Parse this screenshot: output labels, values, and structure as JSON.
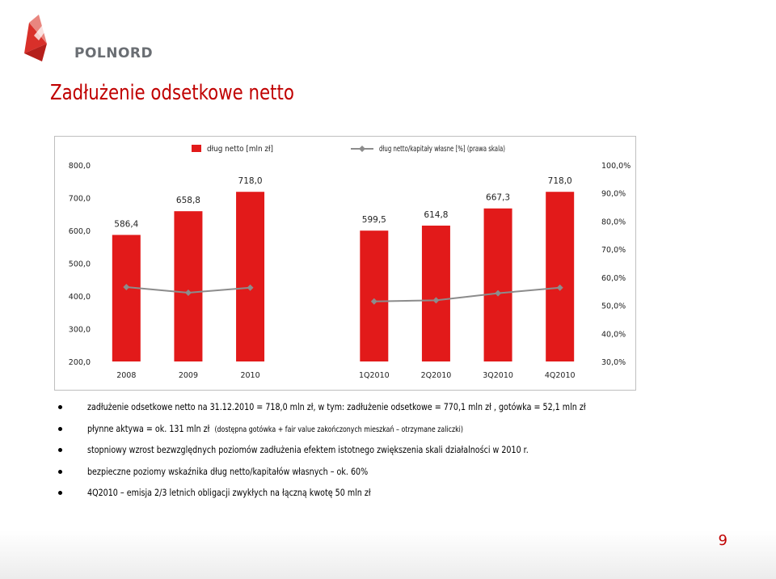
{
  "header": {
    "logo_text": "POLNORD",
    "title": "Zadłużenie odsetkowe netto"
  },
  "colors": {
    "bar": "#e21a1a",
    "line": "#8c8c8c",
    "title": "#c00000",
    "logo_text": "#6a6e73"
  },
  "chart_data": {
    "type": "bar",
    "categories": [
      "2008",
      "2009",
      "2010",
      "",
      "1Q2010",
      "2Q2010",
      "3Q2010",
      "4Q2010"
    ],
    "series": [
      {
        "name": "dług netto [mln zł]",
        "type": "bar",
        "axis": "left",
        "values": [
          586.4,
          658.8,
          718.0,
          null,
          599.5,
          614.8,
          667.3,
          718.0
        ],
        "labels": [
          "586,4",
          "658,8",
          "718,0",
          "",
          "599,5",
          "614,8",
          "667,3",
          "718,0"
        ]
      },
      {
        "name": "dług netto/kapitały własne [%] (prawa skala)",
        "type": "line",
        "axis": "right",
        "values": [
          0.565,
          0.545,
          0.563,
          null,
          0.514,
          0.518,
          0.543,
          0.563
        ]
      }
    ],
    "ylim": [
      200,
      800
    ],
    "y2lim": [
      0.3,
      1.0
    ],
    "yticks": [
      "200,0",
      "300,0",
      "400,0",
      "500,0",
      "600,0",
      "700,0",
      "800,0"
    ],
    "y2ticks": [
      "30,0%",
      "40,0%",
      "50,0%",
      "60,0%",
      "70,0%",
      "80,0%",
      "90,0%",
      "100,0%"
    ],
    "legend_position": "top",
    "grid": false
  },
  "bullets": [
    {
      "text": "zadłużenie odsetkowe netto na 31.12.2010 = 718,0 mln zł, w tym: zadłużenie odsetkowe = 770,1 mln zł , gotówka = 52,1 mln zł"
    },
    {
      "text": "płynne aktywa =  ok. 131 mln zł",
      "small": "(dostępna gotówka + fair value zakończonych mieszkań – otrzymane zaliczki)"
    },
    {
      "text": "stopniowy wzrost bezwzględnych poziomów zadłużenia  efektem istotnego zwiększenia skali działalności w 2010 r."
    },
    {
      "text": "bezpieczne poziomy wskaźnika dług netto/kapitałów własnych – ok. 60%"
    },
    {
      "text": "4Q2010 – emisja 2/3 letnich obligacji zwykłych na łączną kwotę 50 mln zł"
    }
  ],
  "footer": {
    "page_number": "9"
  }
}
